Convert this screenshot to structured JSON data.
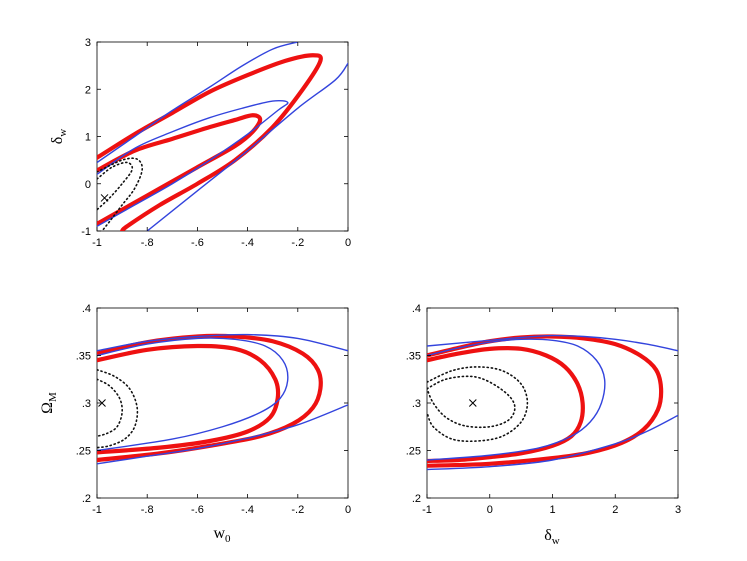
{
  "chart_data": [
    {
      "type": "contour",
      "panel": "top-left",
      "xlabel": "",
      "ylabel": "δw",
      "ylabel_main": "δ",
      "ylabel_sub": "w",
      "xlim": [
        -1,
        0
      ],
      "ylim": [
        -1,
        3
      ],
      "xticks": [
        -1,
        -0.8,
        -0.6,
        -0.4,
        -0.2,
        0
      ],
      "yticks": [
        -1,
        0,
        1,
        2,
        3
      ],
      "marker": {
        "x": -0.97,
        "y": -0.3
      },
      "series": [
        {
          "style": "red-thick",
          "color": "#ee1111",
          "points": [
            [
              -1.0,
              0.28
            ],
            [
              -0.85,
              0.7
            ],
            [
              -0.7,
              0.95
            ],
            [
              -0.55,
              1.2
            ],
            [
              -0.45,
              1.35
            ],
            [
              -0.38,
              1.45
            ],
            [
              -0.35,
              1.36
            ],
            [
              -0.38,
              1.1
            ],
            [
              -0.45,
              0.8
            ],
            [
              -0.6,
              0.35
            ],
            [
              -0.75,
              -0.1
            ],
            [
              -0.9,
              -0.55
            ],
            [
              -1.0,
              -0.85
            ]
          ]
        },
        {
          "style": "red-thick",
          "color": "#ee1111",
          "points": [
            [
              -1.0,
              0.55
            ],
            [
              -0.85,
              1.05
            ],
            [
              -0.7,
              1.5
            ],
            [
              -0.55,
              1.95
            ],
            [
              -0.4,
              2.3
            ],
            [
              -0.25,
              2.6
            ],
            [
              -0.14,
              2.72
            ],
            [
              -0.11,
              2.6
            ],
            [
              -0.18,
              2.0
            ],
            [
              -0.3,
              1.2
            ],
            [
              -0.45,
              0.5
            ],
            [
              -0.6,
              0.0
            ],
            [
              -0.75,
              -0.45
            ],
            [
              -0.88,
              -0.9
            ],
            [
              -0.9,
              -1.0
            ]
          ]
        },
        {
          "style": "blue-thin",
          "color": "#3344dd",
          "points": [
            [
              -1.0,
              0.2
            ],
            [
              -0.85,
              0.75
            ],
            [
              -0.7,
              1.1
            ],
            [
              -0.55,
              1.4
            ],
            [
              -0.42,
              1.6
            ],
            [
              -0.3,
              1.75
            ],
            [
              -0.24,
              1.72
            ],
            [
              -0.28,
              1.55
            ],
            [
              -0.4,
              1.05
            ],
            [
              -0.55,
              0.5
            ],
            [
              -0.7,
              0.0
            ],
            [
              -0.85,
              -0.45
            ],
            [
              -1.0,
              -0.9
            ]
          ]
        },
        {
          "style": "blue-thin",
          "color": "#3344dd",
          "points": [
            [
              -1.0,
              0.45
            ],
            [
              -0.85,
              1.0
            ],
            [
              -0.7,
              1.55
            ],
            [
              -0.55,
              2.05
            ],
            [
              -0.42,
              2.5
            ],
            [
              -0.3,
              2.85
            ],
            [
              -0.2,
              3.0
            ]
          ]
        },
        {
          "style": "blue-thin",
          "color": "#3344dd",
          "points": [
            [
              -0.8,
              -1.0
            ],
            [
              -0.6,
              -0.15
            ],
            [
              -0.4,
              0.7
            ],
            [
              -0.2,
              1.6
            ],
            [
              -0.05,
              2.2
            ],
            [
              0.0,
              2.55
            ]
          ]
        },
        {
          "style": "black-dotted",
          "color": "#111111",
          "points": [
            [
              -1.0,
              0.1
            ],
            [
              -0.94,
              0.35
            ],
            [
              -0.88,
              0.45
            ],
            [
              -0.86,
              0.3
            ],
            [
              -0.9,
              0.0
            ],
            [
              -0.95,
              -0.3
            ],
            [
              -1.0,
              -0.55
            ]
          ]
        },
        {
          "style": "black-dotted",
          "color": "#111111",
          "points": [
            [
              -1.0,
              0.25
            ],
            [
              -0.9,
              0.5
            ],
            [
              -0.84,
              0.52
            ],
            [
              -0.82,
              0.3
            ],
            [
              -0.85,
              -0.1
            ],
            [
              -0.9,
              -0.45
            ],
            [
              -0.95,
              -0.8
            ],
            [
              -0.98,
              -1.0
            ]
          ]
        }
      ]
    },
    {
      "type": "contour",
      "panel": "bottom-left",
      "xlabel": "w0",
      "xlabel_main": "w",
      "xlabel_sub": "0",
      "ylabel": "ΩM",
      "ylabel_main": "Ω",
      "ylabel_sub": "M",
      "xlim": [
        -1,
        0
      ],
      "ylim": [
        0.2,
        0.4
      ],
      "xticks": [
        -1,
        -0.8,
        -0.6,
        -0.4,
        -0.2,
        0
      ],
      "yticks": [
        0.2,
        0.25,
        0.3,
        0.35,
        0.4
      ],
      "marker": {
        "x": -0.98,
        "y": 0.3
      },
      "series": [
        {
          "style": "red-thick",
          "color": "#ee1111",
          "points": [
            [
              -1.0,
              0.345
            ],
            [
              -0.8,
              0.356
            ],
            [
              -0.6,
              0.36
            ],
            [
              -0.45,
              0.357
            ],
            [
              -0.35,
              0.345
            ],
            [
              -0.29,
              0.325
            ],
            [
              -0.28,
              0.305
            ],
            [
              -0.31,
              0.285
            ],
            [
              -0.4,
              0.27
            ],
            [
              -0.55,
              0.26
            ],
            [
              -0.75,
              0.253
            ],
            [
              -1.0,
              0.248
            ]
          ]
        },
        {
          "style": "red-thick",
          "color": "#ee1111",
          "points": [
            [
              -1.0,
              0.352
            ],
            [
              -0.8,
              0.364
            ],
            [
              -0.6,
              0.37
            ],
            [
              -0.45,
              0.37
            ],
            [
              -0.3,
              0.365
            ],
            [
              -0.18,
              0.352
            ],
            [
              -0.12,
              0.335
            ],
            [
              -0.11,
              0.315
            ],
            [
              -0.14,
              0.295
            ],
            [
              -0.22,
              0.278
            ],
            [
              -0.35,
              0.265
            ],
            [
              -0.55,
              0.255
            ],
            [
              -0.75,
              0.247
            ],
            [
              -1.0,
              0.24
            ]
          ]
        },
        {
          "style": "blue-thin",
          "color": "#3344dd",
          "points": [
            [
              -1.0,
              0.35
            ],
            [
              -0.8,
              0.362
            ],
            [
              -0.6,
              0.368
            ],
            [
              -0.45,
              0.367
            ],
            [
              -0.33,
              0.36
            ],
            [
              -0.26,
              0.345
            ],
            [
              -0.24,
              0.325
            ],
            [
              -0.27,
              0.305
            ],
            [
              -0.35,
              0.29
            ],
            [
              -0.5,
              0.275
            ],
            [
              -0.7,
              0.262
            ],
            [
              -1.0,
              0.25
            ]
          ]
        },
        {
          "style": "blue-thin",
          "color": "#3344dd",
          "points": [
            [
              -1.0,
              0.355
            ],
            [
              -0.8,
              0.365
            ],
            [
              -0.6,
              0.37
            ],
            [
              -0.4,
              0.372
            ],
            [
              -0.2,
              0.368
            ],
            [
              0.0,
              0.355
            ]
          ]
        },
        {
          "style": "blue-thin",
          "color": "#3344dd",
          "points": [
            [
              -1.0,
              0.236
            ],
            [
              -0.8,
              0.244
            ],
            [
              -0.6,
              0.252
            ],
            [
              -0.4,
              0.263
            ],
            [
              -0.2,
              0.277
            ],
            [
              0.0,
              0.298
            ]
          ]
        },
        {
          "style": "black-dotted",
          "color": "#111111",
          "points": [
            [
              -1.0,
              0.325
            ],
            [
              -0.95,
              0.318
            ],
            [
              -0.91,
              0.305
            ],
            [
              -0.9,
              0.29
            ],
            [
              -0.92,
              0.275
            ],
            [
              -0.96,
              0.268
            ],
            [
              -1.0,
              0.265
            ]
          ]
        },
        {
          "style": "black-dotted",
          "color": "#111111",
          "points": [
            [
              -1.0,
              0.335
            ],
            [
              -0.93,
              0.328
            ],
            [
              -0.87,
              0.315
            ],
            [
              -0.84,
              0.295
            ],
            [
              -0.85,
              0.275
            ],
            [
              -0.89,
              0.262
            ],
            [
              -0.95,
              0.255
            ],
            [
              -1.0,
              0.253
            ]
          ]
        }
      ]
    },
    {
      "type": "contour",
      "panel": "bottom-right",
      "xlabel": "δw",
      "xlabel_main": "δ",
      "xlabel_sub": "w",
      "ylabel": "",
      "xlim": [
        -1,
        3
      ],
      "ylim": [
        0.2,
        0.4
      ],
      "xticks": [
        -1,
        0,
        1,
        2,
        3
      ],
      "yticks": [
        0.2,
        0.25,
        0.3,
        0.35,
        0.4
      ],
      "marker": {
        "x": -0.27,
        "y": 0.3
      },
      "series": [
        {
          "style": "red-thick",
          "color": "#ee1111",
          "points": [
            [
              -1.0,
              0.345
            ],
            [
              -0.5,
              0.352
            ],
            [
              0.0,
              0.357
            ],
            [
              0.5,
              0.357
            ],
            [
              0.9,
              0.35
            ],
            [
              1.2,
              0.338
            ],
            [
              1.4,
              0.32
            ],
            [
              1.48,
              0.3
            ],
            [
              1.45,
              0.28
            ],
            [
              1.3,
              0.265
            ],
            [
              1.0,
              0.255
            ],
            [
              0.5,
              0.247
            ],
            [
              0.0,
              0.243
            ],
            [
              -0.5,
              0.24
            ],
            [
              -1.0,
              0.239
            ]
          ]
        },
        {
          "style": "red-thick",
          "color": "#ee1111",
          "points": [
            [
              -1.0,
              0.35
            ],
            [
              -0.5,
              0.358
            ],
            [
              0.0,
              0.365
            ],
            [
              0.5,
              0.369
            ],
            [
              1.0,
              0.37
            ],
            [
              1.5,
              0.368
            ],
            [
              2.0,
              0.362
            ],
            [
              2.4,
              0.35
            ],
            [
              2.65,
              0.335
            ],
            [
              2.73,
              0.315
            ],
            [
              2.68,
              0.293
            ],
            [
              2.45,
              0.272
            ],
            [
              2.1,
              0.258
            ],
            [
              1.6,
              0.248
            ],
            [
              1.0,
              0.242
            ],
            [
              0.0,
              0.236
            ],
            [
              -1.0,
              0.234
            ]
          ]
        },
        {
          "style": "blue-thin",
          "color": "#3344dd",
          "points": [
            [
              -1.0,
              0.35
            ],
            [
              -0.5,
              0.358
            ],
            [
              0.0,
              0.364
            ],
            [
              0.5,
              0.367
            ],
            [
              1.0,
              0.366
            ],
            [
              1.4,
              0.36
            ],
            [
              1.7,
              0.345
            ],
            [
              1.83,
              0.325
            ],
            [
              1.78,
              0.3
            ],
            [
              1.6,
              0.28
            ],
            [
              1.3,
              0.265
            ],
            [
              0.8,
              0.253
            ],
            [
              0.0,
              0.245
            ],
            [
              -1.0,
              0.24
            ]
          ]
        },
        {
          "style": "blue-thin",
          "color": "#3344dd",
          "points": [
            [
              -1.0,
              0.36
            ],
            [
              0.0,
              0.366
            ],
            [
              0.5,
              0.369
            ],
            [
              1.0,
              0.371
            ],
            [
              1.5,
              0.37
            ],
            [
              2.0,
              0.367
            ],
            [
              2.5,
              0.362
            ],
            [
              3.0,
              0.355
            ]
          ]
        },
        {
          "style": "blue-thin",
          "color": "#3344dd",
          "points": [
            [
              -1.0,
              0.23
            ],
            [
              0.0,
              0.233
            ],
            [
              1.0,
              0.24
            ],
            [
              2.0,
              0.257
            ],
            [
              2.5,
              0.27
            ],
            [
              3.0,
              0.287
            ]
          ]
        },
        {
          "style": "black-dotted",
          "color": "#111111",
          "points": [
            [
              -1.0,
              0.315
            ],
            [
              -0.7,
              0.325
            ],
            [
              -0.3,
              0.328
            ],
            [
              0.0,
              0.322
            ],
            [
              0.3,
              0.308
            ],
            [
              0.4,
              0.295
            ],
            [
              0.3,
              0.282
            ],
            [
              0.0,
              0.275
            ],
            [
              -0.4,
              0.276
            ],
            [
              -0.7,
              0.285
            ],
            [
              -0.9,
              0.3
            ],
            [
              -1.0,
              0.315
            ]
          ]
        },
        {
          "style": "black-dotted",
          "color": "#111111",
          "points": [
            [
              -1.0,
              0.322
            ],
            [
              -0.6,
              0.334
            ],
            [
              -0.2,
              0.338
            ],
            [
              0.2,
              0.334
            ],
            [
              0.5,
              0.32
            ],
            [
              0.6,
              0.3
            ],
            [
              0.5,
              0.28
            ],
            [
              0.2,
              0.265
            ],
            [
              -0.2,
              0.26
            ],
            [
              -0.6,
              0.262
            ],
            [
              -0.9,
              0.275
            ],
            [
              -1.0,
              0.29
            ]
          ]
        }
      ]
    }
  ]
}
